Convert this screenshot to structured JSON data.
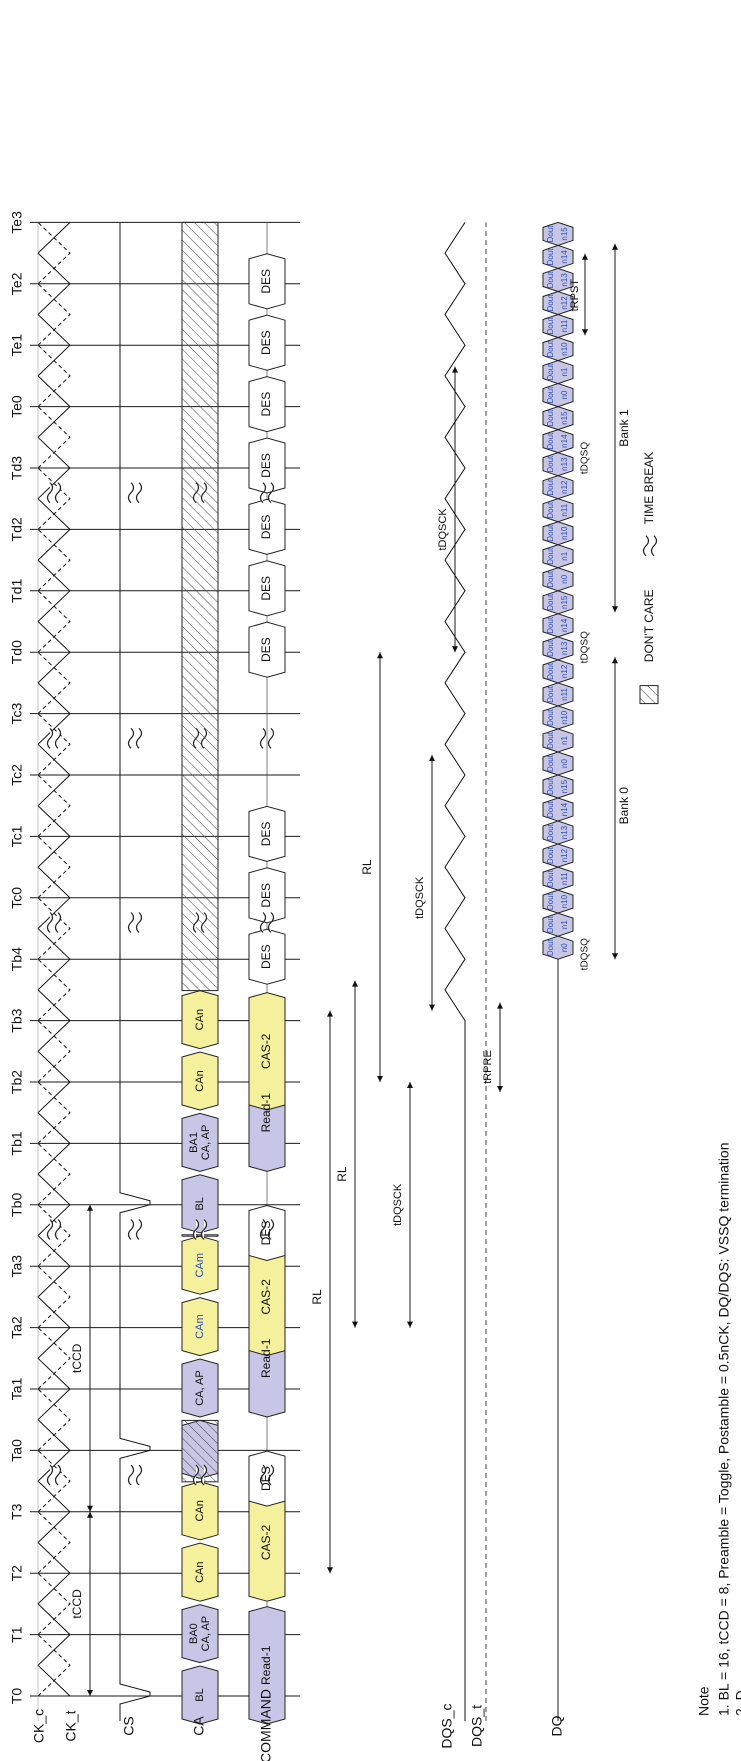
{
  "signals": {
    "ck_c": "CK_c",
    "ck_t": "CK_t",
    "cs": "CS",
    "ca": "CA",
    "command": "COMMAND",
    "dqs_c": "DQS_c",
    "dqs_t": "DQS_t",
    "dq": "DQ"
  },
  "clocks": [
    "T0",
    "T1",
    "T2",
    "T3",
    "Ta0",
    "Ta1",
    "Ta2",
    "Ta3",
    "Tb0",
    "Tb1",
    "Tb2",
    "Tb3",
    "Tb4",
    "Tc0",
    "Tc1",
    "Tc2",
    "Tc3",
    "Td0",
    "Td1",
    "Td2",
    "Td3",
    "Te0",
    "Te1",
    "Te2",
    "Te3"
  ],
  "ca_labels": [
    "BL",
    "BA0\nCA, AP",
    "CAn",
    "CAn",
    "",
    "CA, AP",
    "CAm",
    "CAm",
    "BL",
    "BA1\nCA, AP",
    "CAn",
    "CAn"
  ],
  "commands": {
    "read": "Read-1",
    "cas": "CAS-2",
    "des": "DES"
  },
  "dq_word": "Dout",
  "dq_bursts": [
    [
      "n0",
      "n1",
      "n10",
      "n11",
      "n12",
      "n13",
      "n14",
      "n15"
    ],
    [
      "n0",
      "n1",
      "n10",
      "n11",
      "n12",
      "n13",
      "n14",
      "n15"
    ],
    [
      "n0",
      "n1",
      "n10",
      "n11",
      "n12",
      "n13",
      "n14",
      "n15"
    ],
    [
      "n0",
      "n1",
      "n10",
      "n11",
      "n12",
      "n13",
      "n14",
      "n15"
    ]
  ],
  "timing": {
    "tccd": "tCCD",
    "rl": "RL",
    "tdqsck": "tDQSCK",
    "trpre": "tRPRE",
    "tdqsq": "tDQSQ",
    "trpst": "tRPST",
    "bank0": "Bank 0",
    "bank1": "Bank 1"
  },
  "legend": {
    "dont_care": "DON'T CARE",
    "time_break": "TIME BREAK"
  },
  "note": {
    "title": "Note",
    "line1": "1. BL = 16, tCCD = 8, Preamble = Toggle, Postamble = 0.5nCK, DQ/DQS: VSSQ termination",
    "line2": "2. D"
  },
  "colors": {
    "lavender": "#c8c6e6",
    "yellow": "#f5f09c",
    "dout_text": "#2b4fb8",
    "line": "#1a1a1a"
  }
}
